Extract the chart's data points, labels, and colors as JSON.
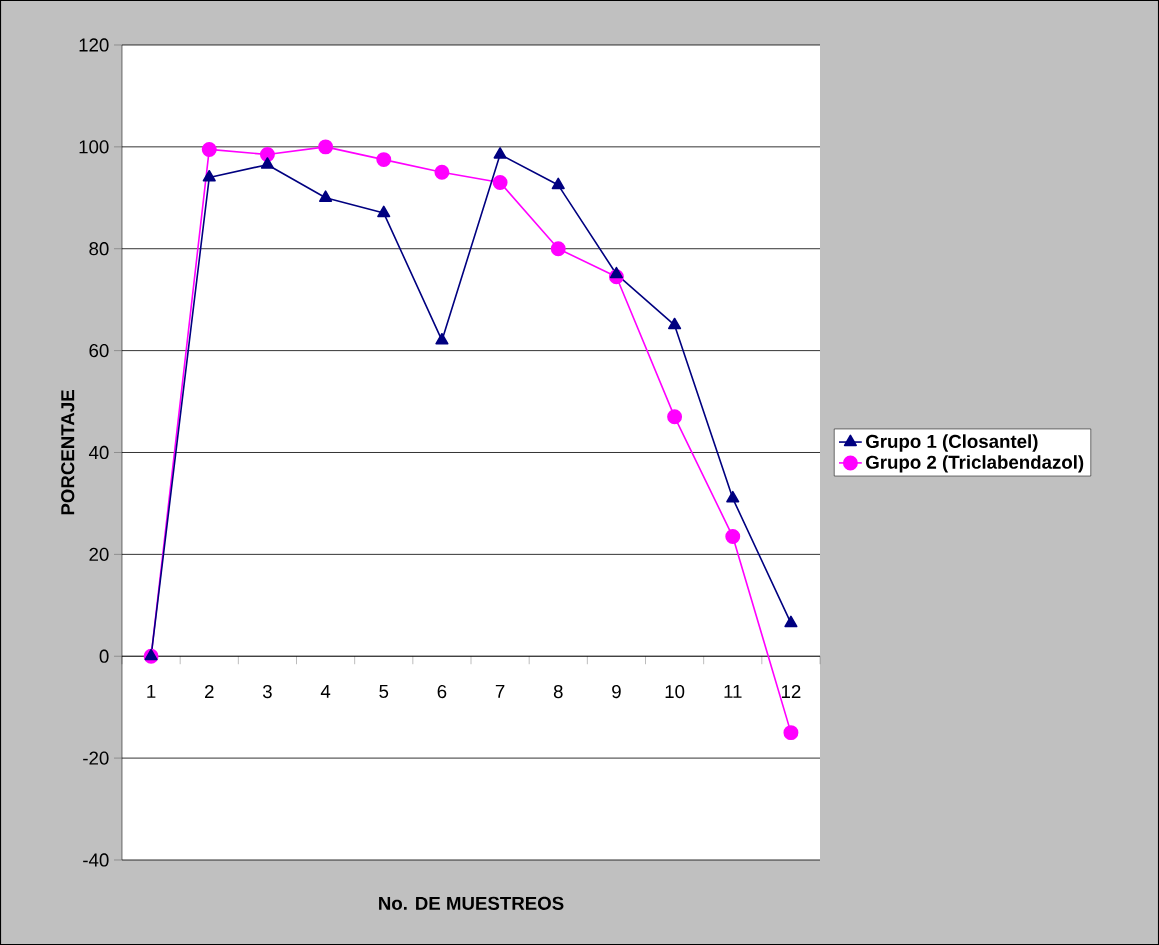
{
  "chart_data": {
    "type": "line",
    "xlabel": "No. DE MUESTREOS",
    "ylabel": "PORCENTAJE",
    "categories": [
      "1",
      "2",
      "3",
      "4",
      "5",
      "6",
      "7",
      "8",
      "9",
      "10",
      "11",
      "12"
    ],
    "series": [
      {
        "name": "Grupo 1 (Closantel)",
        "color": "#000080",
        "marker": "triangle",
        "values": [
          0,
          94,
          96.5,
          90,
          87,
          62,
          98.5,
          92.5,
          75,
          65,
          31,
          6.5
        ]
      },
      {
        "name": "Grupo 2 (Triclabendazol)",
        "color": "#ff00ff",
        "marker": "circle",
        "values": [
          0,
          99.5,
          98.5,
          100,
          97.5,
          95,
          93,
          80,
          74.5,
          47,
          23.5,
          -15
        ]
      }
    ],
    "ylim": [
      -40,
      120
    ],
    "yticks": [
      -40,
      -20,
      0,
      20,
      40,
      60,
      80,
      100,
      120
    ],
    "grid": "y",
    "legend": "right"
  }
}
